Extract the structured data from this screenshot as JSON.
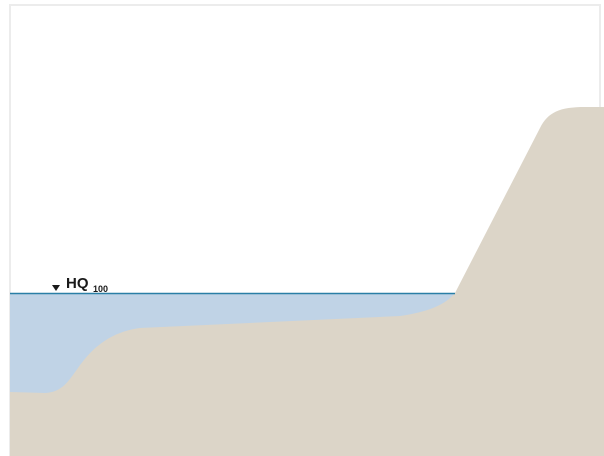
{
  "label": {
    "main": "HQ",
    "subscript": "100"
  }
}
